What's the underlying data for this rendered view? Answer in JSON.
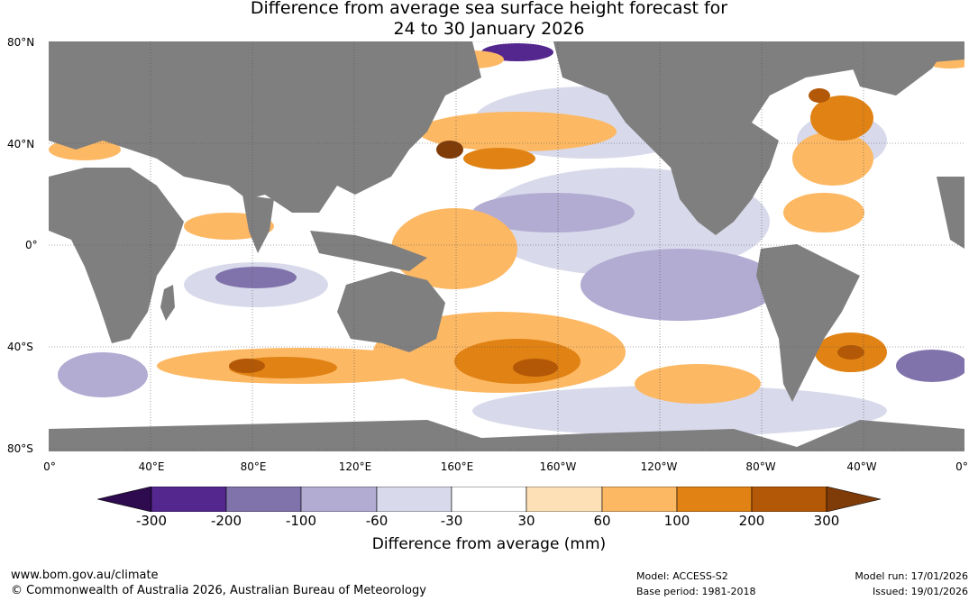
{
  "title_line1": "Difference from average sea surface height forecast for",
  "title_line2": "24 to 30 January 2026",
  "map": {
    "land_color": "#7f7f7f",
    "ocean_color": "#ffffff",
    "lat_labels": [
      "80°N",
      "40°N",
      "0°",
      "40°S",
      "80°S"
    ],
    "lon_labels": [
      "0°",
      "40°E",
      "80°E",
      "120°E",
      "160°E",
      "160°W",
      "120°W",
      "80°W",
      "40°W",
      "0°"
    ]
  },
  "colorbar": {
    "title": "Difference from average (mm)",
    "ticks": [
      "-300",
      "-200",
      "-100",
      "-60",
      "-30",
      "30",
      "60",
      "100",
      "200",
      "300"
    ],
    "colors": [
      "#2d0b4e",
      "#54278f",
      "#8073ac",
      "#b2abd2",
      "#d8daeb",
      "#ffffff",
      "#fee0b6",
      "#fdb863",
      "#e08214",
      "#b35806",
      "#7f3b08"
    ]
  },
  "footer": {
    "url": "www.bom.gov.au/climate",
    "copyright": "© Commonwealth of Australia 2026, Australian Bureau of Meteorology",
    "model": "Model: ACCESS-S2",
    "base_period": "Base period: 1981-2018",
    "model_run": "Model run: 17/01/2026",
    "issued": "Issued: 19/01/2026"
  }
}
